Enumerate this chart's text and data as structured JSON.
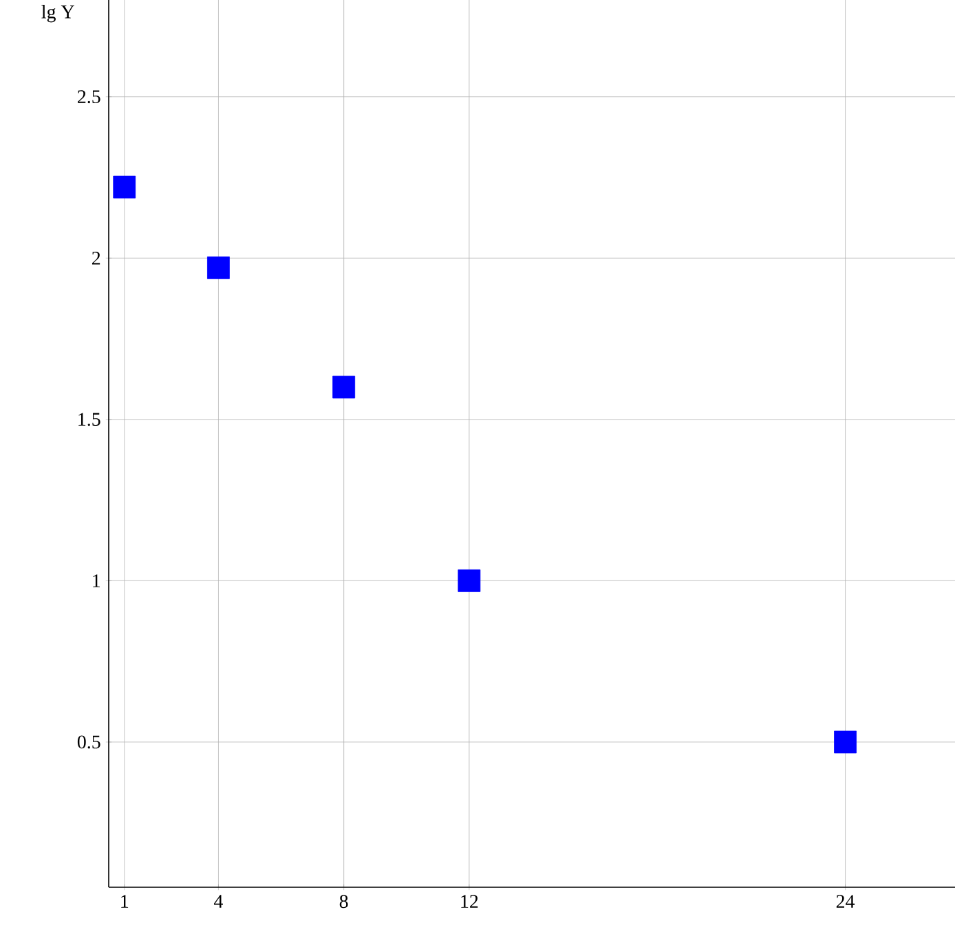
{
  "chart_data": {
    "type": "scatter",
    "ylabel": "lg Y",
    "x": [
      1,
      4,
      8,
      12,
      24
    ],
    "values": [
      2.22,
      1.97,
      1.6,
      1.0,
      0.5
    ],
    "color": "#0000ff",
    "marker": "square",
    "xlim": [
      0.5,
      27.5
    ],
    "ylim": [
      0.05,
      2.8
    ],
    "xticks": [
      1,
      4,
      8,
      12,
      24
    ],
    "yticks": [
      0.5,
      1,
      1.5,
      2,
      2.5
    ],
    "grid": true
  }
}
